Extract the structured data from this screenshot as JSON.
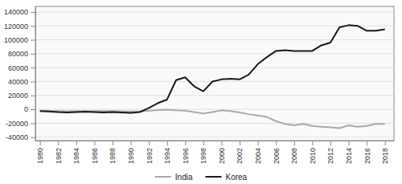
{
  "chart_data": {
    "type": "line",
    "x": [
      1980,
      1981,
      1982,
      1983,
      1984,
      1985,
      1986,
      1987,
      1988,
      1989,
      1990,
      1991,
      1992,
      1993,
      1994,
      1995,
      1996,
      1997,
      1998,
      1999,
      2000,
      2001,
      2002,
      2003,
      2004,
      2005,
      2006,
      2007,
      2008,
      2009,
      2010,
      2011,
      2012,
      2013,
      2014,
      2015,
      2016,
      2017,
      2018
    ],
    "series": [
      {
        "name": "India",
        "color": "#aaaaaa",
        "values": [
          -2000,
          -2200,
          -2500,
          -2800,
          -2500,
          -2500,
          -2500,
          -2500,
          -2500,
          -2800,
          -3000,
          -3000,
          -2000,
          -1000,
          -500,
          -1500,
          -2000,
          -4000,
          -6000,
          -4000,
          -1500,
          -2500,
          -4500,
          -7000,
          -9000,
          -11000,
          -17000,
          -21000,
          -23000,
          -21000,
          -24000,
          -25000,
          -26000,
          -27000,
          -23000,
          -25000,
          -24000,
          -21000,
          -21000
        ]
      },
      {
        "name": "Korea",
        "color": "#1a1a1a",
        "values": [
          -2500,
          -3000,
          -4000,
          -4500,
          -4000,
          -3500,
          -4000,
          -4500,
          -4000,
          -4500,
          -5000,
          -4000,
          2000,
          9000,
          14000,
          42000,
          46000,
          33000,
          26000,
          40000,
          43000,
          44000,
          43000,
          50000,
          65000,
          75000,
          84000,
          85000,
          84000,
          84000,
          84000,
          92000,
          96000,
          118000,
          121000,
          120000,
          113000,
          113000,
          115000
        ]
      }
    ],
    "xlim": [
      1979.5,
      2019
    ],
    "xticks": [
      1980,
      1982,
      1984,
      1986,
      1988,
      1990,
      1992,
      1994,
      1996,
      1998,
      2000,
      2002,
      2004,
      2006,
      2008,
      2010,
      2012,
      2014,
      2016,
      2018
    ],
    "ylim": [
      -45000,
      148000
    ],
    "yticks": [
      -40000,
      -20000,
      0,
      20000,
      40000,
      60000,
      80000,
      100000,
      120000,
      140000
    ],
    "grid": true,
    "legend": "bottom"
  }
}
